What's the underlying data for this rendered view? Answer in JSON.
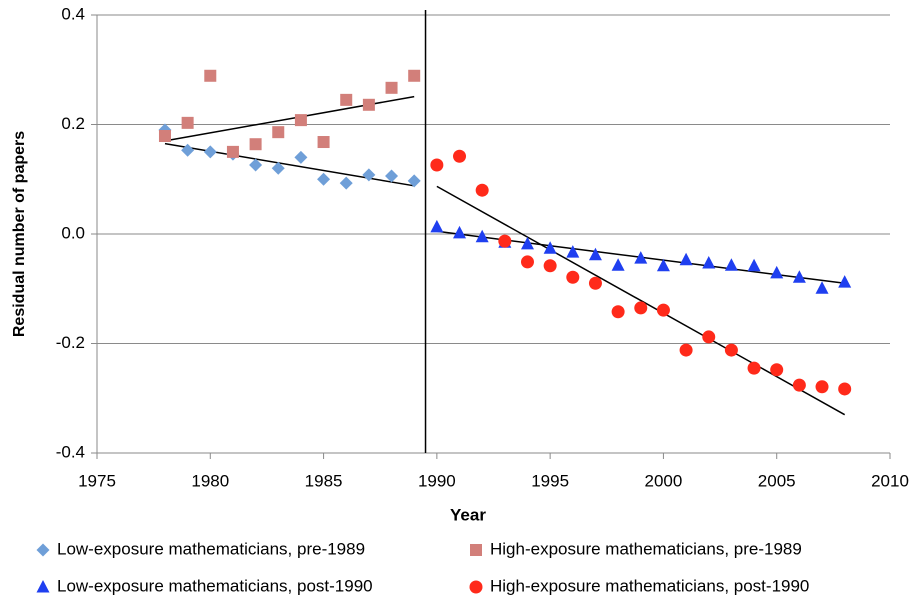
{
  "chart_data": {
    "type": "scatter",
    "xlabel": "Year",
    "ylabel": "Residual number of papers",
    "xlim": [
      1975,
      2010
    ],
    "ylim": [
      -0.4,
      0.4
    ],
    "xticks": [
      1975,
      1980,
      1985,
      1990,
      1995,
      2000,
      2005,
      2010
    ],
    "yticks": [
      -0.4,
      -0.2,
      {
        "value": 0,
        "label": "0.0"
      },
      0.2,
      0.4
    ],
    "grid": true,
    "legend": "bottom",
    "vline": 1989.5,
    "series": [
      {
        "name": "Low-exposure mathematicians, pre-1989",
        "color": "#6f9fd8",
        "marker": "diamond",
        "x": [
          1978,
          1979,
          1980,
          1981,
          1982,
          1983,
          1984,
          1985,
          1986,
          1987,
          1988,
          1989
        ],
        "values": [
          0.19,
          0.153,
          0.15,
          0.146,
          0.126,
          0.12,
          0.14,
          0.1,
          0.093,
          0.108,
          0.106,
          0.097
        ]
      },
      {
        "name": "High-exposure mathematicians, pre-1989",
        "color": "#d27f7a",
        "marker": "square",
        "x": [
          1978,
          1979,
          1980,
          1981,
          1982,
          1983,
          1984,
          1985,
          1986,
          1987,
          1988,
          1989
        ],
        "values": [
          0.179,
          0.203,
          0.289,
          0.15,
          0.164,
          0.186,
          0.208,
          0.168,
          0.245,
          0.236,
          0.267,
          0.289
        ]
      },
      {
        "name": "Low-exposure mathematicians, post-1990",
        "color": "#1f3ff0",
        "marker": "triangle",
        "x": [
          1990,
          1991,
          1992,
          1993,
          1994,
          1995,
          1996,
          1997,
          1998,
          1999,
          2000,
          2001,
          2002,
          2003,
          2004,
          2005,
          2006,
          2007,
          2008
        ],
        "values": [
          0.013,
          0.002,
          -0.005,
          -0.015,
          -0.018,
          -0.026,
          -0.033,
          -0.038,
          -0.057,
          -0.044,
          -0.058,
          -0.047,
          -0.053,
          -0.057,
          -0.058,
          -0.071,
          -0.079,
          -0.099,
          -0.088
        ]
      },
      {
        "name": "High-exposure mathematicians, post-1990",
        "color": "#ff2a1a",
        "marker": "circle",
        "x": [
          1990,
          1991,
          1992,
          1993,
          1994,
          1995,
          1996,
          1997,
          1998,
          1999,
          2000,
          2001,
          2002,
          2003,
          2004,
          2005,
          2006,
          2007,
          2008
        ],
        "values": [
          0.126,
          0.142,
          0.08,
          -0.013,
          -0.051,
          -0.058,
          -0.079,
          -0.09,
          -0.142,
          -0.135,
          -0.139,
          -0.212,
          -0.188,
          -0.212,
          -0.245,
          -0.248,
          -0.276,
          -0.279,
          -0.283
        ]
      }
    ],
    "trendlines": [
      {
        "x": [
          1978,
          1989
        ],
        "values": [
          0.165,
          0.088
        ]
      },
      {
        "x": [
          1978,
          1989
        ],
        "values": [
          0.17,
          0.251
        ]
      },
      {
        "x": [
          1990,
          2008
        ],
        "values": [
          0.005,
          -0.09
        ]
      },
      {
        "x": [
          1990,
          2008
        ],
        "values": [
          0.087,
          -0.33
        ]
      }
    ]
  }
}
